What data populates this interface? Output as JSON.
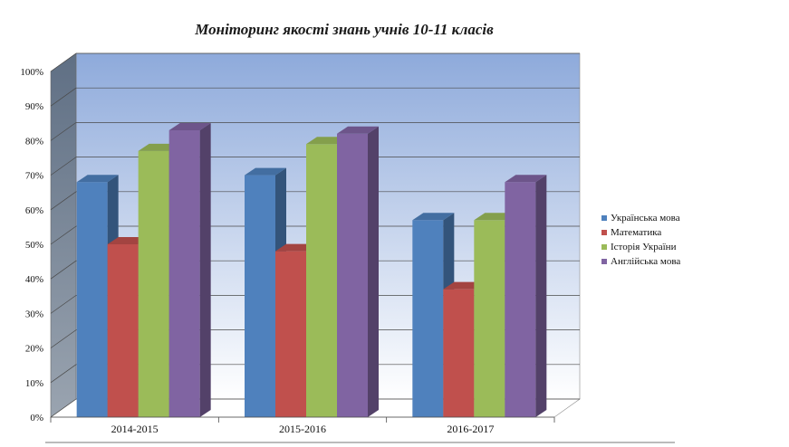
{
  "chart_data": {
    "type": "bar",
    "style": "3d-clustered-column",
    "title": "Моніторинг якості знань учнів 10-11 класів",
    "categories": [
      "2014-2015",
      "2015-2016",
      "2016-2017"
    ],
    "series": [
      {
        "name": "Українська мова",
        "values": [
          68,
          70,
          57
        ],
        "color": "#4F81BD"
      },
      {
        "name": "Математика",
        "values": [
          50,
          48,
          37
        ],
        "color": "#C0504D"
      },
      {
        "name": "Історія України",
        "values": [
          77,
          79,
          57
        ],
        "color": "#9BBB59"
      },
      {
        "name": "Англійська мова",
        "values": [
          83,
          82,
          68
        ],
        "color": "#8064A2"
      }
    ],
    "ylim": [
      0,
      100
    ],
    "yticks": [
      "0%",
      "10%",
      "20%",
      "30%",
      "40%",
      "50%",
      "60%",
      "70%",
      "80%",
      "90%",
      "100%"
    ],
    "grid": true,
    "legend": "right",
    "colors": {
      "wall_top": "#8EAADB",
      "wall_bottom": "#FFFFFF",
      "side_wall": "#6F7F93"
    }
  }
}
